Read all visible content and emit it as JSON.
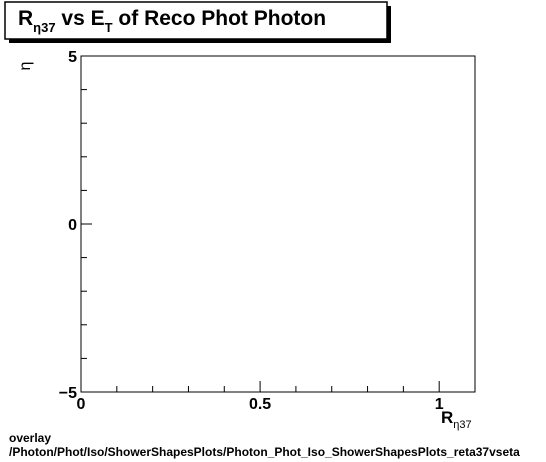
{
  "chart_data": {
    "type": "scatter",
    "title": {
      "main": "R",
      "sub": "η37",
      "mid": " vs E",
      "sub2": "T",
      "rest": " of Reco Phot Photon"
    },
    "xlabel": {
      "main": "R",
      "sub": "η37"
    },
    "ylabel": "η",
    "xlim": [
      0,
      1.1
    ],
    "ylim": [
      -5,
      5
    ],
    "x_ticks": [
      {
        "value": 0,
        "label": "0"
      },
      {
        "value": 0.5,
        "label": "0.5"
      },
      {
        "value": 1,
        "label": "1"
      }
    ],
    "y_ticks": [
      {
        "value": 5,
        "label": "5"
      },
      {
        "value": 0,
        "label": "0"
      },
      {
        "value": -5,
        "label": "−5"
      }
    ],
    "points": [],
    "grid": false,
    "legend": "none"
  },
  "footer": {
    "line1": "overlay",
    "line2": "/Photon/Phot/Iso/ShowerShapesPlots/Photon_Phot_Iso_ShowerShapesPlots_reta37vseta"
  }
}
